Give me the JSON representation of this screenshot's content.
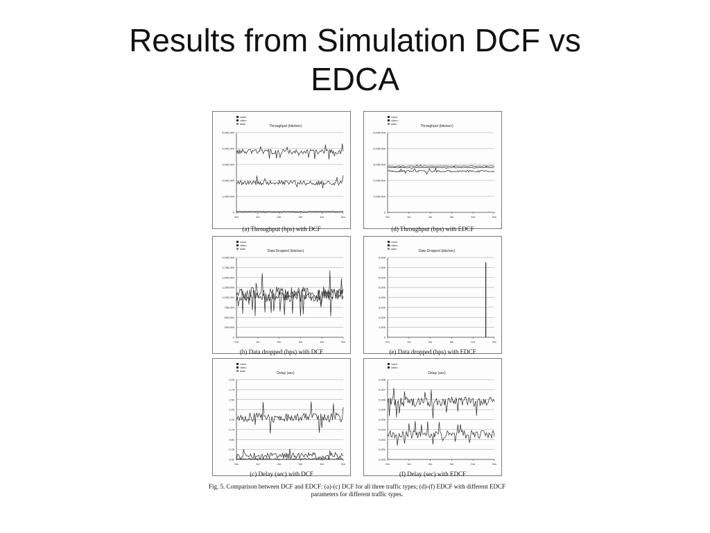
{
  "slide": {
    "title_line1": "Results from Simulation DCF vs",
    "title_line2": "EDCA",
    "figure_caption": "Fig. 5. Comparison between DCF and EDCF: (a)-(c) DCF for all three traffic types; (d)-(f) EDCF with different EDCF parameters for different traffic types."
  },
  "colors": {
    "series": "#222222",
    "grid": "#9a9a9a",
    "axis": "#444444"
  },
  "chart_data": [
    {
      "type": "line",
      "caption": "(a) Throughput (bps) with DCF",
      "title": "Throughput (bits/sec)",
      "legend": [
        "voice",
        "video",
        "data"
      ],
      "legend_position": "top-left",
      "grid": true,
      "x_ticks": [
        "0m",
        "1m",
        "2m",
        "3m",
        "4m",
        "5m"
      ],
      "xlim": [
        0,
        5
      ],
      "y_ticks": [
        "0",
        "1,000,000",
        "2,000,000",
        "3,000,000",
        "4,000,000",
        "5,000,000"
      ],
      "ylim": [
        0,
        5000000
      ],
      "series": [
        {
          "name": "voice",
          "mean": 3800000,
          "noise": 150000
        },
        {
          "name": "video",
          "mean": 1850000,
          "noise": 150000
        },
        {
          "name": "data",
          "mean": 50000,
          "noise": 15000
        }
      ]
    },
    {
      "type": "line",
      "caption": "(d) Throughput (bps) with EDCF",
      "title": "Throughput (bits/sec)",
      "legend": [
        "voice",
        "video",
        "data"
      ],
      "legend_position": "top-left",
      "grid": true,
      "x_ticks": [
        "0m",
        "1m",
        "2m",
        "3m",
        "4m",
        "5m"
      ],
      "xlim": [
        0,
        5
      ],
      "y_ticks": [
        "0",
        "1,000,000",
        "2,000,000",
        "3,000,000",
        "4,000,000",
        "5,000,000"
      ],
      "ylim": [
        0,
        5000000
      ],
      "series": [
        {
          "name": "voice",
          "mean": 2900000,
          "noise": 25000
        },
        {
          "name": "video",
          "mean": 2580000,
          "noise": 60000
        },
        {
          "name": "data",
          "mean": 2800000,
          "noise": 20000
        }
      ]
    },
    {
      "type": "line",
      "caption": "(b) Data dropped (bps) with DCF",
      "title": "Data Dropped (bits/sec)",
      "legend": [
        "voice",
        "video",
        "data"
      ],
      "legend_position": "top-left",
      "grid": true,
      "x_ticks": [
        "0m",
        "1m",
        "2m",
        "3m",
        "4m",
        "5m"
      ],
      "xlim": [
        0,
        5
      ],
      "y_ticks": [
        "0",
        "250,000",
        "500,000",
        "750,000",
        "1,000,000",
        "1,250,000",
        "1,500,000",
        "1,750,000",
        "2,000,000"
      ],
      "ylim": [
        0,
        2000000
      ],
      "series": [
        {
          "name": "voice",
          "mean": 1100000,
          "noise": 170000
        },
        {
          "name": "video",
          "mean": 1050000,
          "noise": 160000
        }
      ]
    },
    {
      "type": "line",
      "caption": "(e) Data dropped (bps) with EDCF",
      "title": "Data Dropped (bits/sec)",
      "legend": [
        "voice",
        "video",
        "data"
      ],
      "legend_position": "top-left",
      "grid": true,
      "x_ticks": [
        "0m",
        "1m",
        "2m",
        "3m",
        "4m",
        "5m"
      ],
      "xlim": [
        0,
        5
      ],
      "y_ticks": [
        "0",
        "1,000",
        "2,000",
        "3,000",
        "4,000",
        "5,000",
        "6,000",
        "7,000",
        "8,000"
      ],
      "ylim": [
        0,
        8000
      ],
      "spike": {
        "x": 4.6,
        "y": 7500
      },
      "series": [
        {
          "name": "data",
          "mean": 0,
          "noise": 0
        }
      ]
    },
    {
      "type": "line",
      "caption": "(c) Delay (sec) with DCF",
      "title": "Delay (sec)",
      "legend": [
        "voice",
        "video",
        "data"
      ],
      "legend_position": "top-left",
      "grid": true,
      "x_ticks": [
        "0m",
        "1m",
        "2m",
        "3m",
        "4m",
        "5m"
      ],
      "xlim": [
        0,
        5
      ],
      "y_ticks": [
        "0.00",
        "0.25",
        "0.50",
        "0.75",
        "1.00",
        "1.25",
        "1.50",
        "1.75",
        "2.00"
      ],
      "ylim": [
        0,
        2
      ],
      "series": [
        {
          "name": "voice",
          "mean": 1.05,
          "noise": 0.12
        },
        {
          "name": "video",
          "mean": 0.1,
          "noise": 0.08
        },
        {
          "name": "data",
          "mean": 0.01,
          "noise": 0.01
        }
      ]
    },
    {
      "type": "line",
      "caption": "(f) Delay (sec) with EDCF",
      "title": "Delay (sec)",
      "legend": [
        "voice",
        "video"
      ],
      "legend_position": "top-left",
      "grid": true,
      "x_ticks": [
        "0m",
        "1m",
        "2m",
        "3m",
        "4m",
        "5m"
      ],
      "xlim": [
        0,
        5
      ],
      "y_ticks": [
        "0.000",
        "0.001",
        "0.002",
        "0.003",
        "0.004",
        "0.005",
        "0.006",
        "0.007",
        "0.008"
      ],
      "ylim": [
        0,
        0.008
      ],
      "series": [
        {
          "name": "voice",
          "mean": 0.0058,
          "noise": 0.0005
        },
        {
          "name": "video",
          "mean": 0.0025,
          "noise": 0.0004
        }
      ]
    }
  ]
}
